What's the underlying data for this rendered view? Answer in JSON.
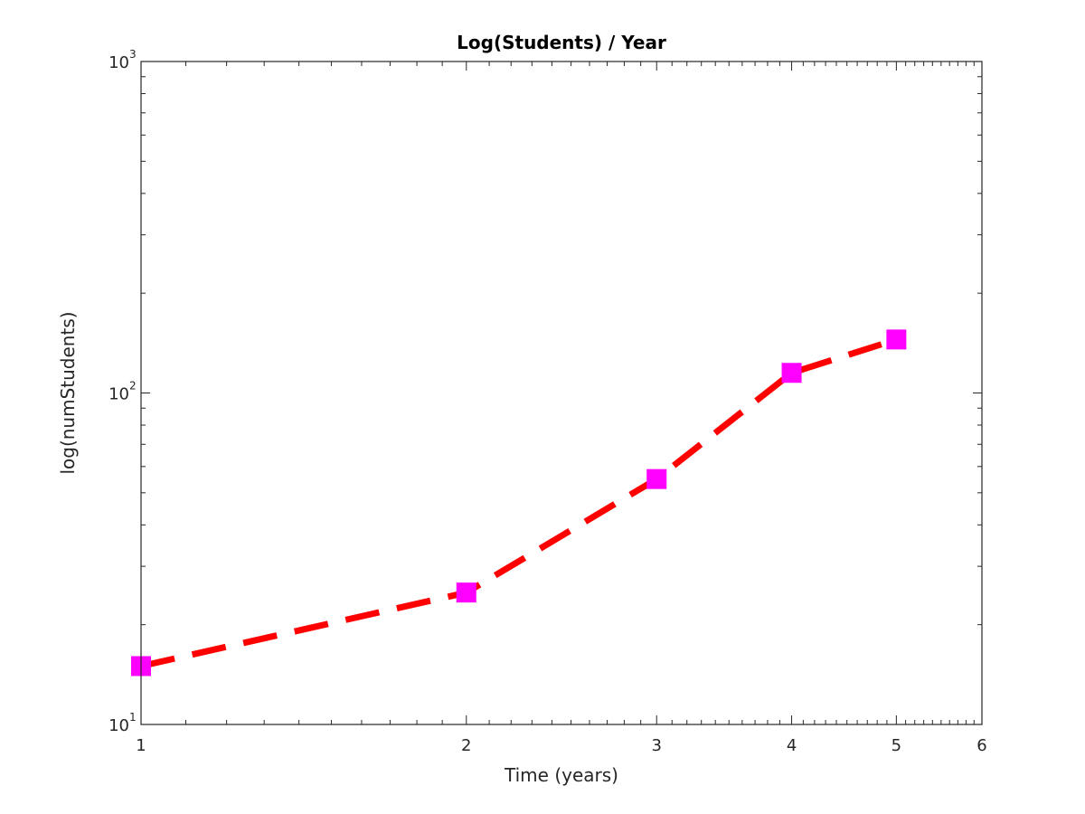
{
  "chart_data": {
    "type": "line",
    "title": "Log(Students) / Year",
    "xlabel": "Time (years)",
    "ylabel": "log(numStudents)",
    "xscale": "log",
    "yscale": "log",
    "xlim": [
      1,
      6
    ],
    "ylim": [
      10,
      1000
    ],
    "grid": false,
    "legend": "none",
    "x_ticks": [
      {
        "value": 1,
        "label": "1"
      },
      {
        "value": 2,
        "label": "2"
      },
      {
        "value": 3,
        "label": "3"
      },
      {
        "value": 4,
        "label": "4"
      },
      {
        "value": 5,
        "label": "5"
      },
      {
        "value": 6,
        "label": "6"
      }
    ],
    "y_ticks": [
      {
        "value": 10,
        "base": "10",
        "exp": "1"
      },
      {
        "value": 100,
        "base": "10",
        "exp": "2"
      },
      {
        "value": 1000,
        "base": "10",
        "exp": "3"
      }
    ],
    "series": [
      {
        "x": [
          1,
          2,
          3,
          4,
          5
        ],
        "y": [
          15,
          25,
          55,
          115,
          145
        ],
        "line_color": "#ff0000",
        "line_style": "dashed",
        "marker": "square",
        "marker_color": "#ff00ff"
      }
    ]
  }
}
